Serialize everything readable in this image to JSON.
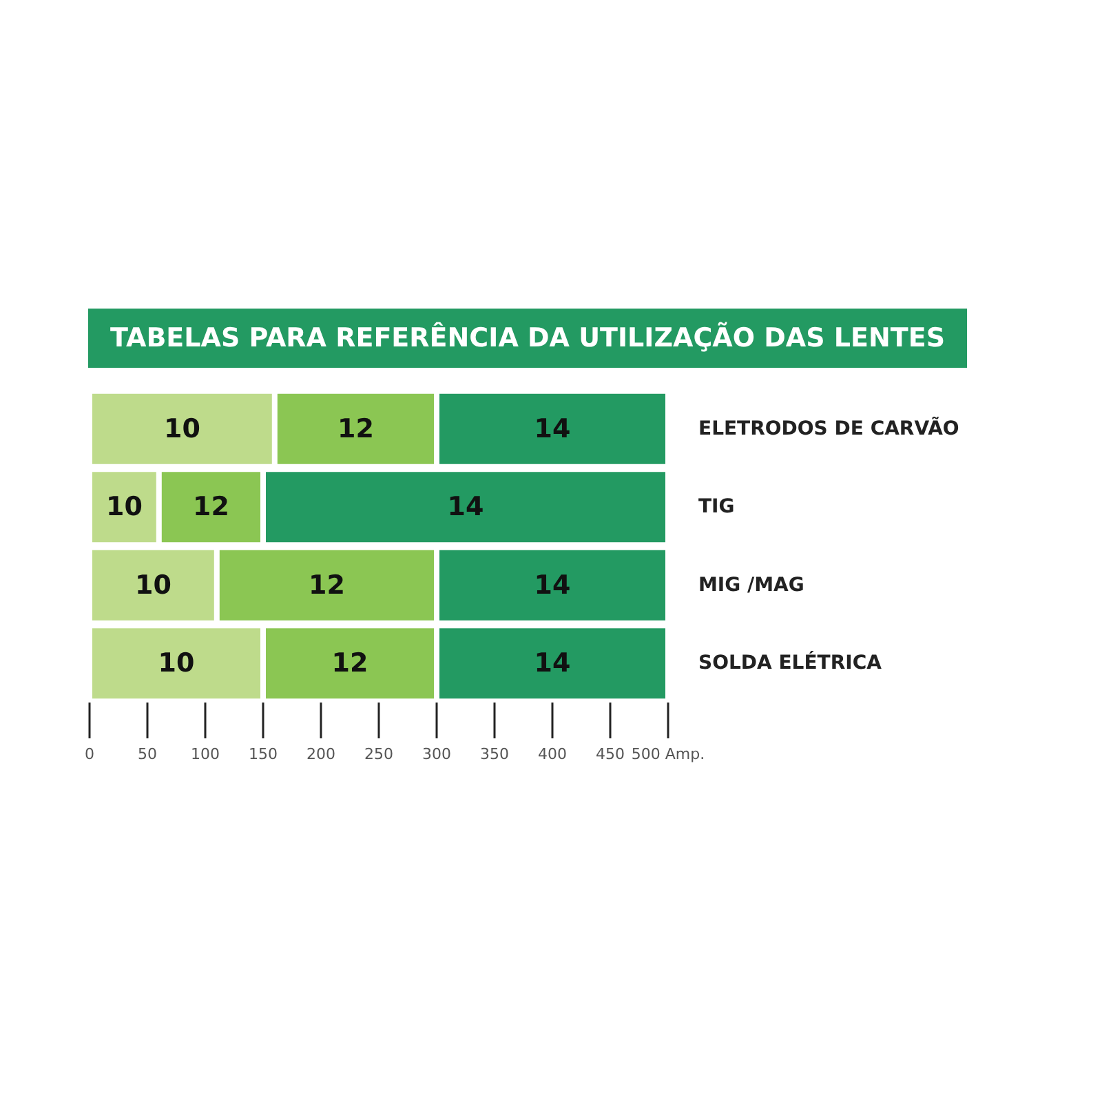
{
  "chart_data": {
    "type": "bar",
    "orientation": "horizontal",
    "stacked": true,
    "title": "TABELAS PARA REFERÊNCIA DA UTILIZAÇÃO DAS LENTES",
    "categories": [
      "ELETRODOS DE CARVÃO",
      "TIG",
      "MIG /MAG",
      "SOLDA ELÉTRICA"
    ],
    "series": [
      {
        "name": "10",
        "color": "#bedb8b",
        "values": [
          160,
          60,
          110,
          150
        ]
      },
      {
        "name": "12",
        "color": "#8bc653",
        "values": [
          140,
          90,
          190,
          150
        ]
      },
      {
        "name": "14",
        "color": "#239a62",
        "values": [
          200,
          350,
          200,
          200
        ]
      }
    ],
    "xlim": [
      0,
      500
    ],
    "xticks": [
      0,
      50,
      100,
      150,
      200,
      250,
      300,
      350,
      400,
      450,
      {
        "value": 500,
        "label": "500 Amp."
      }
    ],
    "grid": false,
    "legend": false
  }
}
